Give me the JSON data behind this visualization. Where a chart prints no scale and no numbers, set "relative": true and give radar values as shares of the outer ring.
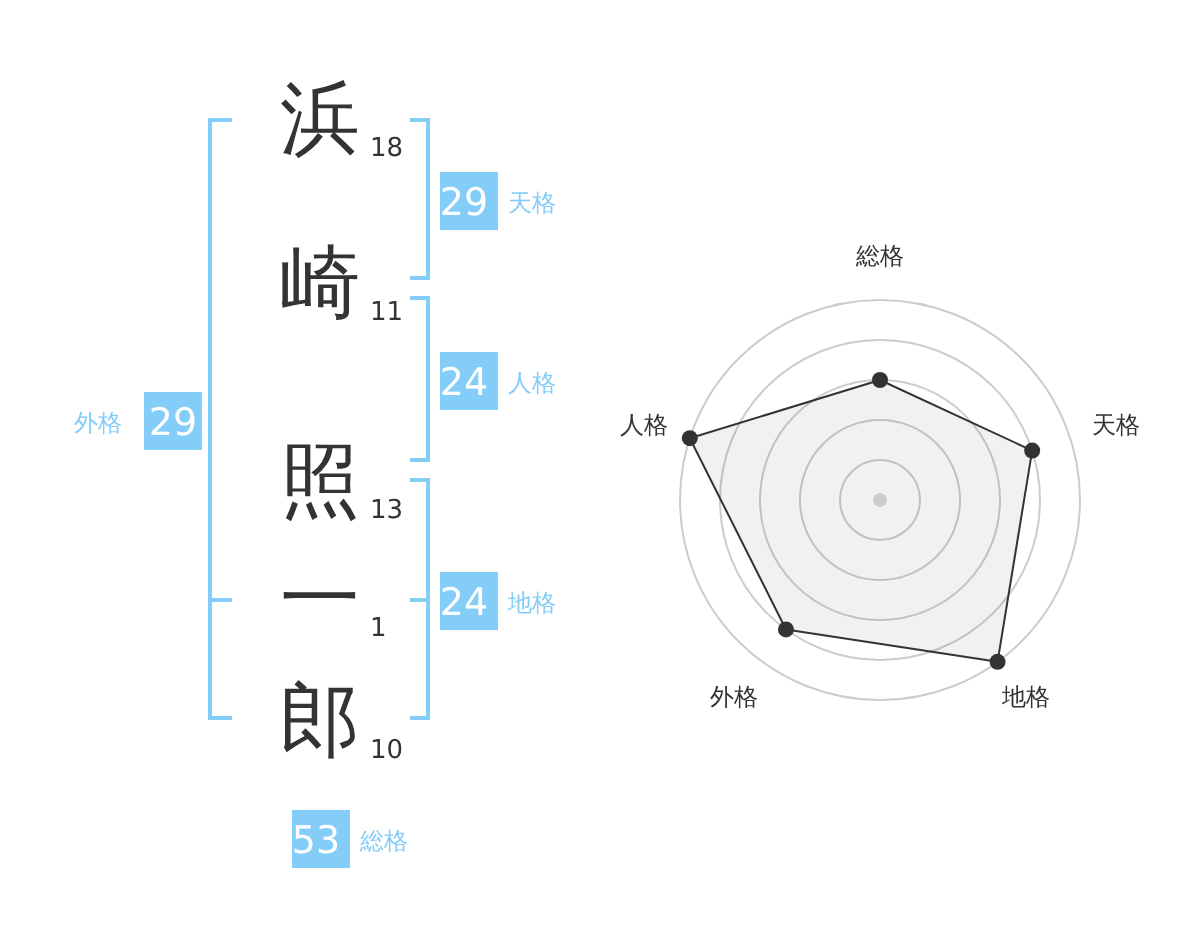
{
  "chart_data": [
    {
      "type": "other",
      "categories": [
        "浜",
        "崎",
        "照",
        "一",
        "郎"
      ],
      "values": [
        18,
        11,
        13,
        1,
        10
      ],
      "data_labels": true,
      "annotations": [
        "29 天格",
        "24 人格",
        "24 地格",
        "外格 29",
        "53 総格"
      ]
    },
    {
      "type": "radar",
      "categories": [
        "総格",
        "天格",
        "地格",
        "外格",
        "人格"
      ],
      "relative": true,
      "series": [
        {
          "color": "#333333",
          "values": [
            0.6,
            0.8,
            1.0,
            0.8,
            1.0
          ]
        }
      ],
      "grid": true,
      "marker": "circle"
    }
  ]
}
